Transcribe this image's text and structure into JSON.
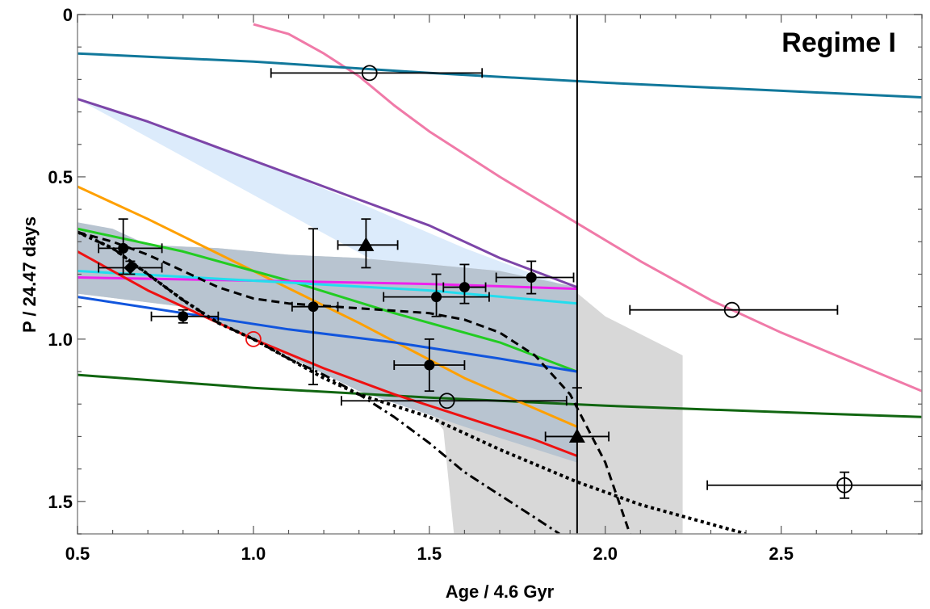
{
  "chart_data": {
    "type": "scatter",
    "annotation": "Regime I",
    "xlabel": "Age / 4.6 Gyr",
    "ylabel": "P / 24.47 days",
    "xlim": [
      0.5,
      2.9
    ],
    "ylim": [
      0,
      1.6
    ],
    "y_inverted": true,
    "x_ticks": [
      "0.5",
      "1.0",
      "1.5",
      "2.0",
      "2.5"
    ],
    "x_tick_values": [
      0.5,
      1.0,
      1.5,
      2.0,
      2.5
    ],
    "y_ticks": [
      "0",
      "0.5",
      "1.0",
      "1.5"
    ],
    "y_tick_values": [
      0,
      0.5,
      1.0,
      1.5
    ],
    "vertical_line_x": 1.92,
    "colors": {
      "pink": "#f07aa8",
      "teal": "#11789b",
      "purple": "#7c45a8",
      "orange": "#ffa000",
      "green": "#22cc22",
      "dark_green": "#116611",
      "magenta": "#ee22ee",
      "cyan": "#22ddee",
      "blue": "#1155dd",
      "red": "#ee1111",
      "light_blue_band": "#dcebfb",
      "gray_band": "#b8c4d0",
      "light_gray_band": "#d8d8d8"
    },
    "bands": [
      {
        "color": "light_blue_band",
        "upper": [
          [
            0.5,
            0.26
          ],
          [
            0.7,
            0.33
          ],
          [
            1.0,
            0.45
          ],
          [
            1.3,
            0.58
          ],
          [
            1.6,
            0.72
          ],
          [
            1.92,
            0.85
          ]
        ],
        "lower": [
          [
            0.5,
            0.85
          ],
          [
            0.8,
            0.9
          ],
          [
            1.2,
            0.96
          ],
          [
            1.6,
            1.02
          ],
          [
            1.92,
            1.1
          ]
        ]
      },
      {
        "color": "light_gray_band",
        "upper": [
          [
            0.5,
            0.72
          ],
          [
            0.7,
            0.71
          ],
          [
            0.9,
            0.72
          ],
          [
            1.1,
            0.74
          ],
          [
            1.3,
            0.75
          ],
          [
            1.5,
            0.77
          ],
          [
            1.7,
            0.79
          ],
          [
            1.9,
            0.84
          ],
          [
            2.0,
            0.93
          ],
          [
            2.22,
            1.05
          ]
        ],
        "lower": [
          [
            2.22,
            1.6
          ],
          [
            1.57,
            1.6
          ],
          [
            1.54,
            1.28
          ],
          [
            1.5,
            1.22
          ],
          [
            1.3,
            1.16
          ],
          [
            1.0,
            1.0
          ],
          [
            0.8,
            0.9
          ],
          [
            0.5,
            0.86
          ]
        ]
      },
      {
        "color": "gray_band",
        "upper": [
          [
            0.5,
            0.64
          ],
          [
            0.6,
            0.66
          ],
          [
            0.7,
            0.71
          ],
          [
            0.9,
            0.72
          ],
          [
            1.1,
            0.74
          ],
          [
            1.3,
            0.75
          ],
          [
            1.5,
            0.77
          ],
          [
            1.7,
            0.79
          ],
          [
            1.92,
            0.84
          ]
        ],
        "lower": [
          [
            1.92,
            1.38
          ],
          [
            1.6,
            1.27
          ],
          [
            1.3,
            1.16
          ],
          [
            1.0,
            1.0
          ],
          [
            0.8,
            0.9
          ],
          [
            0.5,
            0.86
          ]
        ]
      }
    ],
    "series": [
      {
        "color": "pink",
        "style": "solid",
        "points": [
          [
            1.0,
            0.03
          ],
          [
            1.1,
            0.06
          ],
          [
            1.2,
            0.12
          ],
          [
            1.3,
            0.19
          ],
          [
            1.4,
            0.28
          ],
          [
            1.5,
            0.36
          ],
          [
            1.7,
            0.5
          ],
          [
            1.9,
            0.63
          ],
          [
            2.1,
            0.76
          ],
          [
            2.3,
            0.88
          ],
          [
            2.5,
            0.98
          ],
          [
            2.7,
            1.07
          ],
          [
            2.9,
            1.16
          ]
        ]
      },
      {
        "color": "teal",
        "style": "solid",
        "points": [
          [
            0.5,
            0.12
          ],
          [
            1.0,
            0.145
          ],
          [
            1.5,
            0.18
          ],
          [
            2.0,
            0.21
          ],
          [
            2.5,
            0.235
          ],
          [
            2.9,
            0.255
          ]
        ]
      },
      {
        "color": "dark_green",
        "style": "solid",
        "points": [
          [
            0.5,
            1.11
          ],
          [
            1.0,
            1.15
          ],
          [
            1.5,
            1.18
          ],
          [
            2.0,
            1.205
          ],
          [
            2.5,
            1.225
          ],
          [
            2.9,
            1.24
          ]
        ]
      },
      {
        "color": "purple",
        "style": "solid",
        "points": [
          [
            0.5,
            0.26
          ],
          [
            0.7,
            0.33
          ],
          [
            0.9,
            0.41
          ],
          [
            1.1,
            0.49
          ],
          [
            1.3,
            0.57
          ],
          [
            1.5,
            0.65
          ],
          [
            1.7,
            0.75
          ],
          [
            1.92,
            0.84
          ]
        ]
      },
      {
        "color": "orange",
        "style": "solid",
        "points": [
          [
            0.5,
            0.53
          ],
          [
            0.7,
            0.63
          ],
          [
            1.0,
            0.79
          ],
          [
            1.3,
            0.95
          ],
          [
            1.6,
            1.12
          ],
          [
            1.92,
            1.27
          ]
        ]
      },
      {
        "color": "green",
        "style": "solid",
        "points": [
          [
            0.5,
            0.66
          ],
          [
            0.8,
            0.73
          ],
          [
            1.1,
            0.82
          ],
          [
            1.4,
            0.92
          ],
          [
            1.7,
            1.01
          ],
          [
            1.92,
            1.1
          ]
        ]
      },
      {
        "color": "magenta",
        "style": "solid",
        "points": [
          [
            0.5,
            0.81
          ],
          [
            1.0,
            0.82
          ],
          [
            1.5,
            0.83
          ],
          [
            1.92,
            0.845
          ]
        ]
      },
      {
        "color": "cyan",
        "style": "solid",
        "points": [
          [
            0.5,
            0.79
          ],
          [
            1.0,
            0.82
          ],
          [
            1.5,
            0.85
          ],
          [
            1.92,
            0.89
          ]
        ]
      },
      {
        "color": "blue",
        "style": "solid",
        "points": [
          [
            0.5,
            0.87
          ],
          [
            0.8,
            0.92
          ],
          [
            1.1,
            0.97
          ],
          [
            1.4,
            1.01
          ],
          [
            1.7,
            1.06
          ],
          [
            1.92,
            1.1
          ]
        ]
      },
      {
        "color": "red",
        "style": "solid",
        "points": [
          [
            0.5,
            0.73
          ],
          [
            0.7,
            0.85
          ],
          [
            0.9,
            0.95
          ],
          [
            1.0,
            1.0
          ],
          [
            1.2,
            1.09
          ],
          [
            1.4,
            1.17
          ],
          [
            1.6,
            1.24
          ],
          [
            1.8,
            1.31
          ],
          [
            1.92,
            1.36
          ]
        ]
      },
      {
        "color": "#000000",
        "style": "dashed",
        "points": [
          [
            0.5,
            0.67
          ],
          [
            0.6,
            0.7
          ],
          [
            0.7,
            0.74
          ],
          [
            0.8,
            0.79
          ],
          [
            0.9,
            0.84
          ],
          [
            1.0,
            0.875
          ],
          [
            1.1,
            0.89
          ],
          [
            1.3,
            0.905
          ],
          [
            1.5,
            0.92
          ],
          [
            1.6,
            0.94
          ],
          [
            1.7,
            0.98
          ],
          [
            1.8,
            1.05
          ],
          [
            1.9,
            1.17
          ],
          [
            2.0,
            1.38
          ],
          [
            2.07,
            1.6
          ]
        ]
      },
      {
        "color": "#000000",
        "style": "dotted",
        "points": [
          [
            0.5,
            0.67
          ],
          [
            0.6,
            0.72
          ],
          [
            0.7,
            0.8
          ],
          [
            0.8,
            0.88
          ],
          [
            0.9,
            0.95
          ],
          [
            1.0,
            1.0
          ],
          [
            1.1,
            1.06
          ],
          [
            1.2,
            1.12
          ],
          [
            1.3,
            1.17
          ],
          [
            1.5,
            1.24
          ],
          [
            1.7,
            1.34
          ],
          [
            1.92,
            1.44
          ],
          [
            2.1,
            1.51
          ],
          [
            2.3,
            1.57
          ],
          [
            2.4,
            1.6
          ]
        ]
      },
      {
        "color": "#000000",
        "style": "dashdot",
        "points": [
          [
            0.5,
            0.67
          ],
          [
            0.6,
            0.72
          ],
          [
            0.7,
            0.8
          ],
          [
            0.8,
            0.88
          ],
          [
            0.9,
            0.95
          ],
          [
            1.0,
            1.0
          ],
          [
            1.1,
            1.06
          ],
          [
            1.2,
            1.11
          ],
          [
            1.3,
            1.17
          ],
          [
            1.4,
            1.24
          ],
          [
            1.5,
            1.32
          ],
          [
            1.6,
            1.41
          ],
          [
            1.7,
            1.48
          ],
          [
            1.8,
            1.55
          ],
          [
            1.87,
            1.6
          ]
        ]
      }
    ],
    "data_points": [
      {
        "x": 1.33,
        "y": 0.18,
        "marker": "open_circle",
        "xerr": [
          0.28,
          0.32
        ],
        "yerr": [
          0,
          0
        ],
        "color": "#000000"
      },
      {
        "x": 2.36,
        "y": 0.91,
        "marker": "open_circle",
        "xerr": [
          0.29,
          0.3
        ],
        "yerr": [
          0,
          0
        ],
        "color": "#000000"
      },
      {
        "x": 1.55,
        "y": 1.19,
        "marker": "open_circle",
        "xerr": [
          0.3,
          0.34
        ],
        "yerr": [
          0,
          0
        ],
        "color": "#000000"
      },
      {
        "x": 2.68,
        "y": 1.45,
        "marker": "open_circle",
        "xerr": [
          0.39,
          0.22
        ],
        "yerr": [
          0.04,
          0.04
        ],
        "color": "#000000"
      },
      {
        "x": 1.0,
        "y": 1.0,
        "marker": "open_circle",
        "xerr": [
          0,
          0
        ],
        "yerr": [
          0,
          0
        ],
        "color": "#ee1111"
      },
      {
        "x": 0.63,
        "y": 0.72,
        "marker": "filled_circle",
        "xerr": [
          0.07,
          0.11
        ],
        "yerr": [
          0.09,
          0.08
        ],
        "color": "#000000"
      },
      {
        "x": 0.65,
        "y": 0.78,
        "marker": "diamond",
        "xerr": [
          0.09,
          0.09
        ],
        "yerr": [
          0.02,
          0.02
        ],
        "color": "#000000"
      },
      {
        "x": 0.8,
        "y": 0.93,
        "marker": "filled_circle",
        "xerr": [
          0.09,
          0.1
        ],
        "yerr": [
          0.02,
          0.02
        ],
        "color": "#000000"
      },
      {
        "x": 1.17,
        "y": 0.9,
        "marker": "filled_circle",
        "xerr": [
          0.06,
          0.07
        ],
        "yerr": [
          0.24,
          0.24
        ],
        "color": "#000000"
      },
      {
        "x": 1.32,
        "y": 0.71,
        "marker": "triangle",
        "xerr": [
          0.08,
          0.09
        ],
        "yerr": [
          0.08,
          0.07
        ],
        "color": "#000000"
      },
      {
        "x": 1.52,
        "y": 0.87,
        "marker": "filled_circle",
        "xerr": [
          0.15,
          0.15
        ],
        "yerr": [
          0.07,
          0.06
        ],
        "color": "#000000"
      },
      {
        "x": 1.6,
        "y": 0.84,
        "marker": "filled_circle",
        "xerr": [
          0.06,
          0.06
        ],
        "yerr": [
          0.07,
          0.05
        ],
        "color": "#000000"
      },
      {
        "x": 1.79,
        "y": 0.81,
        "marker": "filled_circle",
        "xerr": [
          0.1,
          0.12
        ],
        "yerr": [
          0.05,
          0.05
        ],
        "color": "#000000"
      },
      {
        "x": 1.5,
        "y": 1.08,
        "marker": "filled_circle",
        "xerr": [
          0.1,
          0.1
        ],
        "yerr": [
          0.08,
          0.08
        ],
        "color": "#000000"
      },
      {
        "x": 1.92,
        "y": 1.3,
        "marker": "triangle",
        "xerr": [
          0.09,
          0.09
        ],
        "yerr": [
          0.15,
          0
        ],
        "color": "#000000"
      }
    ]
  }
}
